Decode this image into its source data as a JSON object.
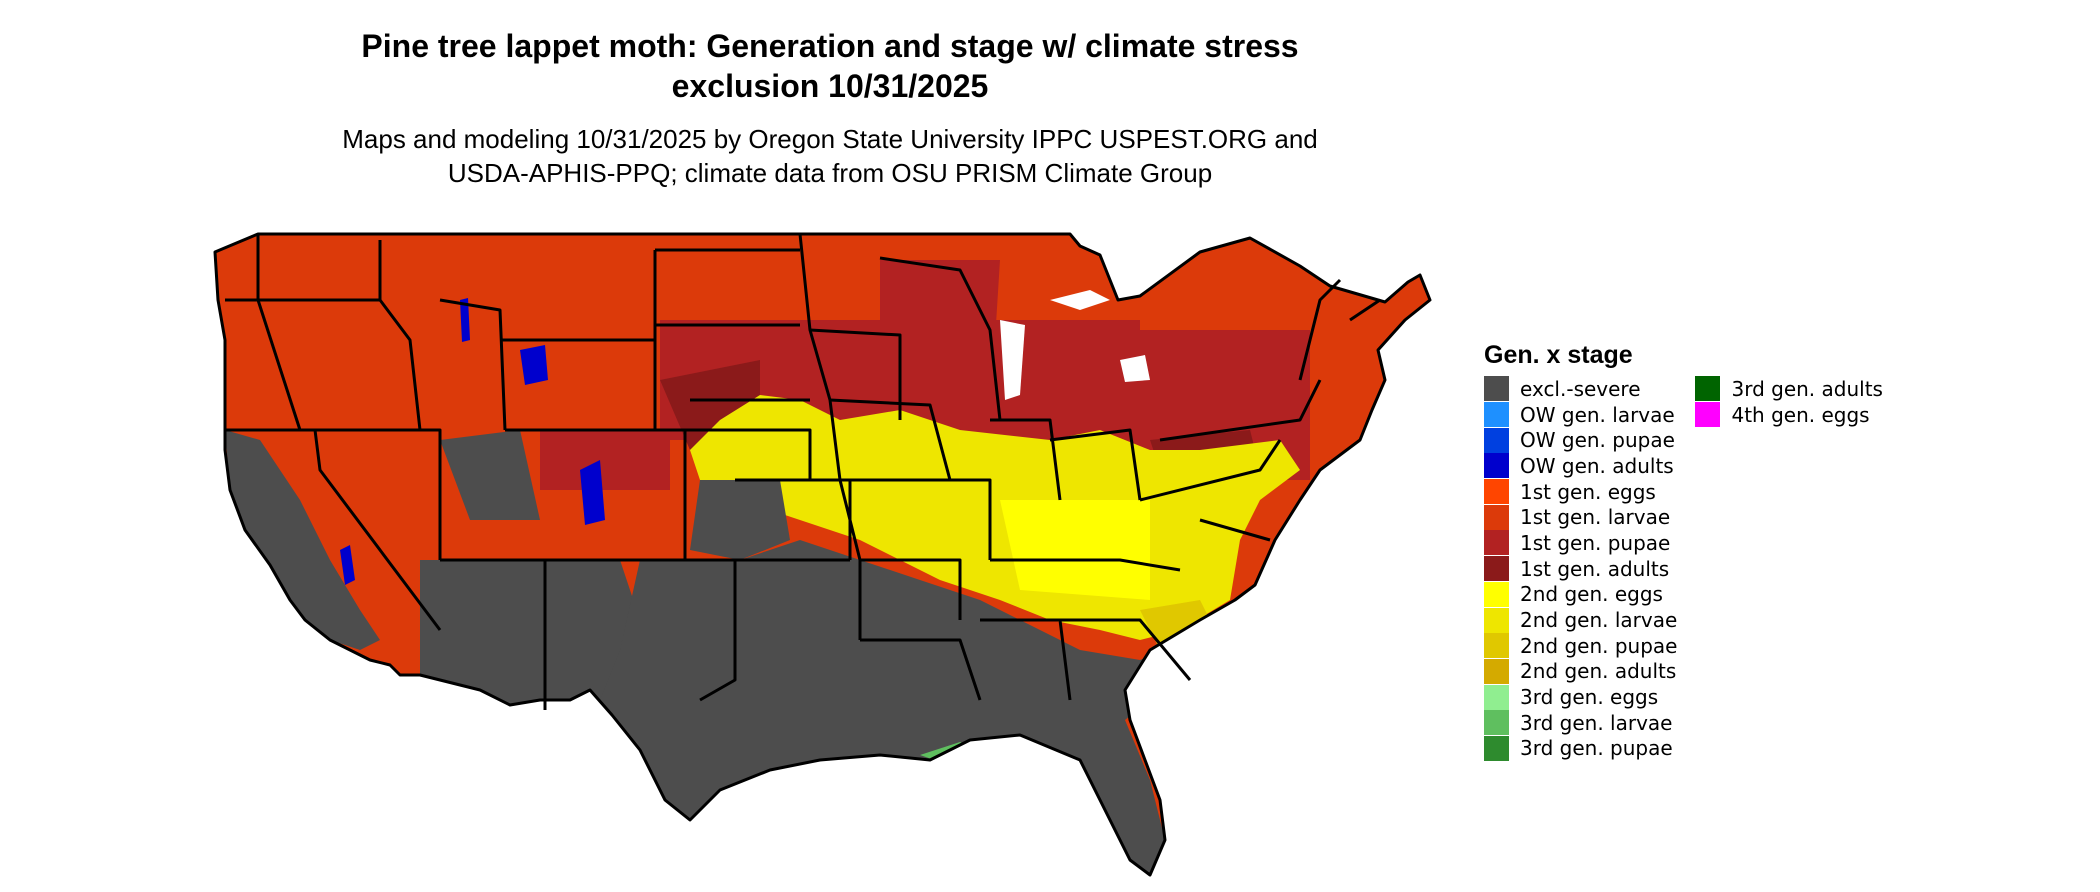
{
  "title": {
    "line1": "Pine tree lappet moth: Generation and stage w/ climate stress",
    "line2": "exclusion 10/31/2025"
  },
  "subtitle": {
    "line1": "Maps and modeling 10/31/2025 by Oregon State University IPPC USPEST.ORG and",
    "line2": "USDA-APHIS-PPQ; climate data from OSU PRISM Climate Group"
  },
  "legend": {
    "title": "Gen. x stage",
    "columns": [
      [
        {
          "label": "excl.-severe",
          "color": "#4d4d4d"
        },
        {
          "label": "OW gen. larvae",
          "color": "#1e90ff"
        },
        {
          "label": "OW gen. pupae",
          "color": "#0040e0"
        },
        {
          "label": "OW gen. adults",
          "color": "#0000cd"
        },
        {
          "label": "1st gen. eggs",
          "color": "#ff4500"
        },
        {
          "label": "1st gen. larvae",
          "color": "#dc3a0a"
        },
        {
          "label": "1st gen. pupae",
          "color": "#b22222"
        },
        {
          "label": "1st gen. adults",
          "color": "#8b1a1a"
        },
        {
          "label": "2nd gen. eggs",
          "color": "#ffff00"
        },
        {
          "label": "2nd gen. larvae",
          "color": "#eee600"
        },
        {
          "label": "2nd gen. pupae",
          "color": "#e0c800"
        },
        {
          "label": "2nd gen. adults",
          "color": "#d4aa00"
        },
        {
          "label": "3rd gen. eggs",
          "color": "#90ee90"
        },
        {
          "label": "3rd gen. larvae",
          "color": "#5fbf5f"
        },
        {
          "label": "3rd gen. pupae",
          "color": "#2e8b2e"
        }
      ],
      [
        {
          "label": "3rd gen. adults",
          "color": "#006400"
        },
        {
          "label": "4th gen. eggs",
          "color": "#ff00ff"
        }
      ]
    ]
  },
  "map": {
    "region": "contiguous United States",
    "colors": {
      "excluded": "#4d4d4d",
      "first_gen_larvae": "#dc3a0a",
      "first_gen_pupae": "#b22222",
      "first_gen_adults": "#8b1a1a",
      "first_gen_eggs": "#ff4500",
      "second_gen_eggs": "#ffff00",
      "second_gen_larvae": "#eee600",
      "ow_adults": "#0000cd",
      "third_gen": "#5fbf5f",
      "border": "#000000"
    }
  }
}
